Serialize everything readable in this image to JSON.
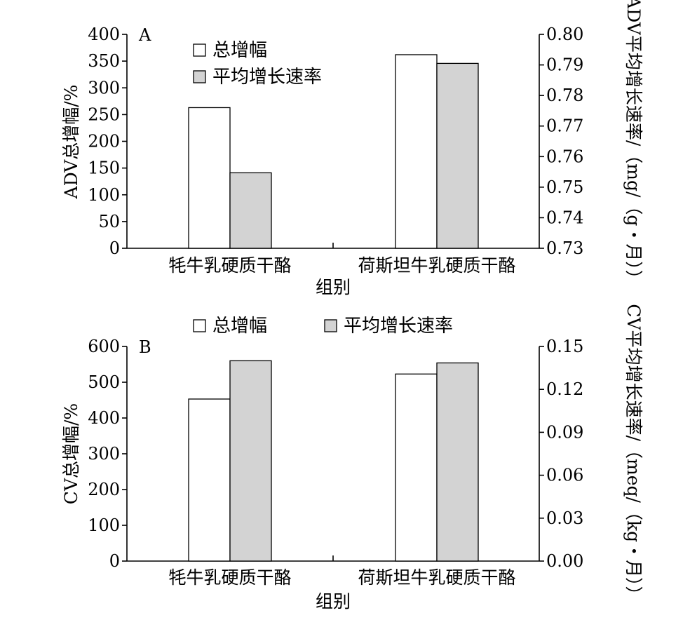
{
  "chart_data": [
    {
      "type": "bar",
      "panel": "A",
      "categories": [
        "牦牛乳硬质干酪",
        "荷斯坦牛乳硬质干酪"
      ],
      "xlabel": "组别",
      "ylabel": "ADV总增幅/%",
      "y2label": "ADV平均增长速率/（mg/（g・月））",
      "ylim": [
        0,
        400
      ],
      "yticks": [
        "0",
        "50",
        "100",
        "150",
        "200",
        "250",
        "300",
        "350",
        "400"
      ],
      "y2lim": [
        0.73,
        0.8
      ],
      "y2ticks": [
        "0.73",
        "0.74",
        "0.75",
        "0.76",
        "0.77",
        "0.78",
        "0.79",
        "0.80"
      ],
      "legend_placement": "top-left, stacked",
      "grid": false,
      "series": [
        {
          "name": "总增幅",
          "axis": "left",
          "color": "#ffffff",
          "values": [
            263,
            362
          ]
        },
        {
          "name": "平均增长速率",
          "axis": "right",
          "color": "#d3d3d3",
          "values": [
            0.7547,
            0.7905
          ]
        }
      ]
    },
    {
      "type": "bar",
      "panel": "B",
      "categories": [
        "牦牛乳硬质干酪",
        "荷斯坦牛乳硬质干酪"
      ],
      "xlabel": "组别",
      "ylabel": "CV总增幅/%",
      "y2label": "CV平均增长速率/（meq/（kg・月））",
      "ylim": [
        0,
        600
      ],
      "yticks": [
        "0",
        "100",
        "200",
        "300",
        "400",
        "500",
        "600"
      ],
      "y2lim": [
        0,
        0.15
      ],
      "y2ticks": [
        "0.00",
        "0.03",
        "0.06",
        "0.09",
        "0.12",
        "0.15"
      ],
      "legend_placement": "top, horizontal",
      "grid": false,
      "series": [
        {
          "name": "总增幅",
          "axis": "left",
          "color": "#ffffff",
          "values": [
            453,
            523
          ]
        },
        {
          "name": "平均增长速率",
          "axis": "right",
          "color": "#d3d3d3",
          "values": [
            0.14,
            0.1385
          ]
        }
      ]
    }
  ]
}
